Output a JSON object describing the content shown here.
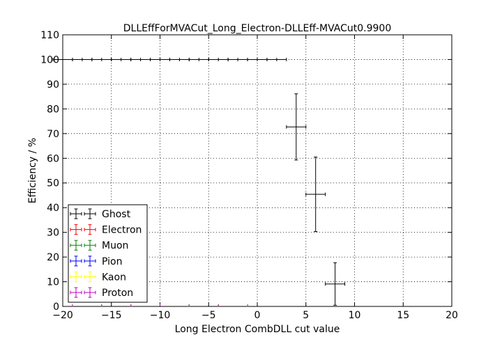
{
  "chart_data": {
    "type": "scatter",
    "title": "DLLEffForMVACut_Long_Electron-DLLEff-MVACut0.9900",
    "xlabel": "Long Electron CombDLL cut value",
    "ylabel": "Efficiency / %",
    "xlim": [
      -20,
      20
    ],
    "ylim": [
      0,
      110
    ],
    "xticks": [
      "−20",
      "−15",
      "−10",
      "−5",
      "0",
      "5",
      "10",
      "15",
      "20"
    ],
    "yticks": [
      "0",
      "10",
      "20",
      "30",
      "40",
      "50",
      "60",
      "70",
      "80",
      "90",
      "100",
      "110"
    ],
    "grid": true,
    "legend_position": "lower-left",
    "series": [
      {
        "name": "Ghost",
        "color": "#000000",
        "points": [
          {
            "x": -20,
            "y": 100,
            "xerr": 1,
            "yerr": 0
          },
          {
            "x": -18,
            "y": 100,
            "xerr": 1,
            "yerr": 0
          },
          {
            "x": -16,
            "y": 100,
            "xerr": 1,
            "yerr": 0
          },
          {
            "x": -14,
            "y": 100,
            "xerr": 1,
            "yerr": 0
          },
          {
            "x": -12,
            "y": 100,
            "xerr": 1,
            "yerr": 0
          },
          {
            "x": -10,
            "y": 100,
            "xerr": 1,
            "yerr": 0
          },
          {
            "x": -8,
            "y": 100,
            "xerr": 1,
            "yerr": 0
          },
          {
            "x": -6,
            "y": 100,
            "xerr": 1,
            "yerr": 0
          },
          {
            "x": -4,
            "y": 100,
            "xerr": 1,
            "yerr": 0
          },
          {
            "x": -2,
            "y": 100,
            "xerr": 1,
            "yerr": 0
          },
          {
            "x": 0,
            "y": 100,
            "xerr": 1,
            "yerr": 0
          },
          {
            "x": 2,
            "y": 100,
            "xerr": 1,
            "yerr": 0
          },
          {
            "x": 4,
            "y": 72.7,
            "xerr": 1,
            "yerr": 13.4
          },
          {
            "x": 6,
            "y": 45.4,
            "xerr": 1,
            "yerr": 15.1
          },
          {
            "x": 8,
            "y": 9.1,
            "xerr": 1,
            "yerr": 8.6
          }
        ]
      },
      {
        "name": "Electron",
        "color": "#ff0000",
        "points": []
      },
      {
        "name": "Muon",
        "color": "#008000",
        "points": []
      },
      {
        "name": "Pion",
        "color": "#0000ff",
        "points": []
      },
      {
        "name": "Kaon",
        "color": "#ffff00",
        "points": []
      },
      {
        "name": "Proton",
        "color": "#bf00bf",
        "points": []
      }
    ]
  }
}
